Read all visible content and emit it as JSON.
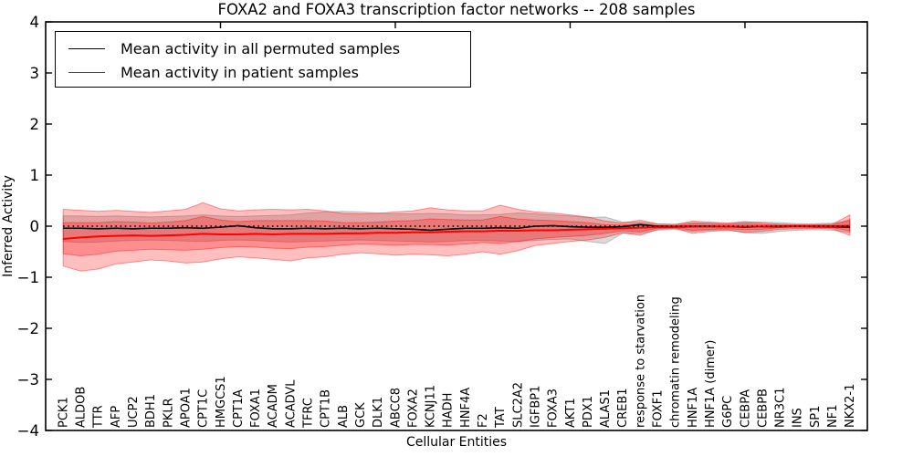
{
  "figure": {
    "title": "FOXA2 and FOXA3 transcription factor networks -- 208 samples",
    "xlabel": "Cellular Entities",
    "ylabel": "Inferred Activity"
  },
  "legend": {
    "items": [
      {
        "label": "Mean activity in all permuted samples",
        "color": "#000000"
      },
      {
        "label": "Mean activity in patient samples",
        "color": "#ff0000"
      }
    ]
  },
  "chart_data": {
    "type": "line",
    "title": "FOXA2 and FOXA3 transcription factor networks -- 208 samples",
    "xlabel": "Cellular Entities",
    "ylabel": "Inferred Activity",
    "ylim": [
      -4,
      4
    ],
    "y_ticks": [
      -4,
      -3,
      -2,
      -1,
      0,
      1,
      2,
      3,
      4
    ],
    "x_major_ticks": [
      10,
      20,
      30,
      40
    ],
    "grid": false,
    "legend_position": "upper left",
    "zero_line": {
      "y": 0,
      "style": "dotted",
      "color": "#000000"
    },
    "categories": [
      "PCK1",
      "ALDOB",
      "TTR",
      "AFP",
      "UCP2",
      "BDH1",
      "PKLR",
      "APOA1",
      "CPT1C",
      "HMGCS1",
      "CPT1A",
      "FOXA1",
      "ACADM",
      "ACADVL",
      "TFRC",
      "CPT1B",
      "ALB",
      "GCK",
      "DLK1",
      "ABCC8",
      "FOXA2",
      "KCNJ11",
      "HADH",
      "HNF4A",
      "F2",
      "TAT",
      "SLC2A2",
      "IGFBP1",
      "FOXA3",
      "AKT1",
      "PDX1",
      "ALAS1",
      "CREB1",
      "response to starvation",
      "FOXF1",
      "chromatin remodeling",
      "HNF1A",
      "HNF1A (dimer)",
      "G6PC",
      "CEBPA",
      "CEBPB",
      "NR3C1",
      "INS",
      "SP1",
      "NF1",
      "NKX2-1"
    ],
    "series": [
      {
        "name": "Mean activity in all permuted samples",
        "color": "#000000",
        "width": 1.6,
        "values": [
          -0.04,
          -0.04,
          -0.05,
          -0.04,
          -0.05,
          -0.04,
          -0.04,
          -0.03,
          -0.04,
          -0.02,
          0.01,
          -0.03,
          -0.05,
          -0.05,
          -0.04,
          -0.05,
          -0.04,
          -0.05,
          -0.04,
          -0.05,
          -0.06,
          -0.08,
          -0.06,
          -0.04,
          -0.04,
          -0.03,
          -0.04,
          0.0,
          0.01,
          -0.01,
          -0.02,
          -0.02,
          -0.01,
          0.03,
          0.0,
          -0.01,
          0.0,
          0.0,
          -0.01,
          -0.02,
          -0.01,
          -0.01,
          0.0,
          -0.01,
          -0.01,
          -0.02
        ]
      },
      {
        "name": "Mean activity in patient samples",
        "color": "#ff0000",
        "width": 2.0,
        "values": [
          -0.25,
          -0.22,
          -0.2,
          -0.19,
          -0.18,
          -0.19,
          -0.18,
          -0.17,
          -0.15,
          -0.16,
          -0.16,
          -0.15,
          -0.16,
          -0.15,
          -0.15,
          -0.15,
          -0.14,
          -0.14,
          -0.13,
          -0.13,
          -0.12,
          -0.12,
          -0.11,
          -0.1,
          -0.1,
          -0.09,
          -0.09,
          -0.08,
          -0.08,
          -0.07,
          -0.06,
          -0.05,
          -0.04,
          -0.03,
          -0.02,
          -0.02,
          -0.01,
          -0.01,
          -0.01,
          -0.01,
          -0.01,
          0.0,
          0.0,
          0.0,
          0.0,
          0.01
        ]
      }
    ],
    "bands": [
      {
        "name": "permuted-std-band",
        "fill": "rgba(128,128,128,0.30)",
        "stroke": "rgba(110,110,110,0.38)",
        "top": [
          0.2,
          0.2,
          0.19,
          0.2,
          0.19,
          0.18,
          0.19,
          0.2,
          0.22,
          0.2,
          0.19,
          0.2,
          0.21,
          0.22,
          0.26,
          0.28,
          0.29,
          0.28,
          0.26,
          0.24,
          0.24,
          0.25,
          0.24,
          0.22,
          0.22,
          0.23,
          0.26,
          0.24,
          0.22,
          0.2,
          0.17,
          0.18,
          0.08,
          0.08,
          0.05,
          0.04,
          0.07,
          0.06,
          0.05,
          0.08,
          0.08,
          0.07,
          0.05,
          0.05,
          0.06,
          0.1
        ],
        "bottom": [
          -0.3,
          -0.32,
          -0.31,
          -0.29,
          -0.28,
          -0.27,
          -0.28,
          -0.29,
          -0.3,
          -0.28,
          -0.27,
          -0.28,
          -0.3,
          -0.31,
          -0.3,
          -0.29,
          -0.28,
          -0.27,
          -0.28,
          -0.29,
          -0.3,
          -0.31,
          -0.3,
          -0.28,
          -0.28,
          -0.29,
          -0.3,
          -0.28,
          -0.26,
          -0.25,
          -0.3,
          -0.34,
          -0.14,
          -0.14,
          -0.08,
          -0.06,
          -0.1,
          -0.08,
          -0.07,
          -0.13,
          -0.14,
          -0.1,
          -0.08,
          -0.07,
          -0.08,
          -0.12
        ]
      },
      {
        "name": "patient-outer-band",
        "fill": "rgba(255,0,0,0.25)",
        "stroke": "rgba(255,0,0,0.40)",
        "top": [
          0.33,
          0.31,
          0.29,
          0.31,
          0.29,
          0.27,
          0.3,
          0.33,
          0.46,
          0.34,
          0.3,
          0.32,
          0.33,
          0.32,
          0.33,
          0.3,
          0.25,
          0.24,
          0.25,
          0.28,
          0.3,
          0.36,
          0.32,
          0.3,
          0.3,
          0.41,
          0.33,
          0.28,
          0.26,
          0.22,
          0.18,
          0.1,
          0.06,
          0.12,
          0.04,
          0.03,
          0.1,
          0.08,
          0.06,
          0.09,
          0.06,
          0.04,
          0.03,
          0.03,
          0.04,
          0.22
        ],
        "bottom": [
          -0.78,
          -0.88,
          -0.84,
          -0.74,
          -0.7,
          -0.66,
          -0.68,
          -0.72,
          -0.7,
          -0.64,
          -0.6,
          -0.62,
          -0.65,
          -0.68,
          -0.62,
          -0.6,
          -0.55,
          -0.52,
          -0.54,
          -0.57,
          -0.55,
          -0.56,
          -0.58,
          -0.55,
          -0.5,
          -0.55,
          -0.48,
          -0.38,
          -0.34,
          -0.3,
          -0.27,
          -0.22,
          -0.13,
          -0.18,
          -0.06,
          -0.04,
          -0.14,
          -0.1,
          -0.08,
          -0.12,
          -0.1,
          -0.06,
          -0.05,
          -0.04,
          -0.05,
          -0.18
        ]
      },
      {
        "name": "patient-inner-band",
        "fill": "rgba(255,0,0,0.25)",
        "stroke": "rgba(255,0,0,0.40)",
        "top": [
          0.07,
          0.07,
          0.07,
          0.09,
          0.08,
          0.06,
          0.08,
          0.11,
          0.19,
          0.12,
          0.09,
          0.11,
          0.11,
          0.11,
          0.11,
          0.1,
          0.07,
          0.07,
          0.08,
          0.1,
          0.11,
          0.14,
          0.13,
          0.12,
          0.12,
          0.19,
          0.14,
          0.12,
          0.11,
          0.09,
          0.07,
          0.03,
          0.02,
          0.05,
          0.01,
          0.01,
          0.05,
          0.04,
          0.03,
          0.05,
          0.03,
          0.02,
          0.02,
          0.02,
          0.02,
          0.13
        ],
        "bottom": [
          -0.54,
          -0.58,
          -0.55,
          -0.49,
          -0.47,
          -0.45,
          -0.46,
          -0.47,
          -0.45,
          -0.42,
          -0.4,
          -0.41,
          -0.43,
          -0.44,
          -0.41,
          -0.4,
          -0.37,
          -0.35,
          -0.36,
          -0.37,
          -0.36,
          -0.36,
          -0.37,
          -0.35,
          -0.32,
          -0.34,
          -0.3,
          -0.25,
          -0.22,
          -0.2,
          -0.18,
          -0.14,
          -0.09,
          -0.11,
          -0.04,
          -0.03,
          -0.08,
          -0.06,
          -0.05,
          -0.07,
          -0.06,
          -0.03,
          -0.03,
          -0.02,
          -0.03,
          -0.09
        ]
      }
    ]
  },
  "style": {
    "axis_color": "#000000",
    "background": "#ffffff"
  }
}
